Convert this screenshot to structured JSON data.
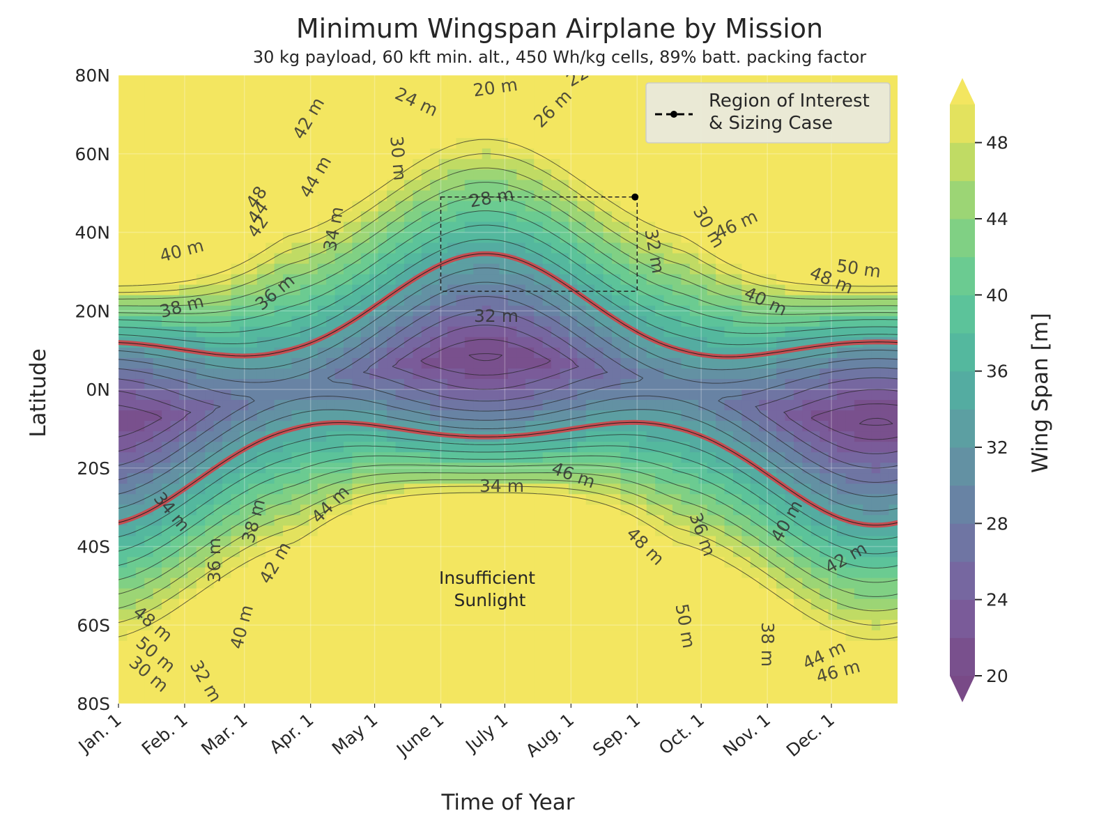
{
  "chart_data": {
    "type": "contour",
    "title": "Minimum Wingspan Airplane by Mission",
    "subtitle": "30 kg payload, 60 kft min. alt., 450 Wh/kg cells, 89% batt. packing factor",
    "xlabel": "Time of Year",
    "ylabel": "Latitude",
    "colorbar_label": "Wing Span [m]",
    "x_ticks": [
      "Jan. 1",
      "Feb. 1",
      "Mar. 1",
      "Apr. 1",
      "May 1",
      "June 1",
      "July 1",
      "Aug. 1",
      "Sep. 1",
      "Oct. 1",
      "Nov. 1",
      "Dec. 1"
    ],
    "y_ticks": [
      "80N",
      "60N",
      "40N",
      "20N",
      "0N",
      "20S",
      "40S",
      "60S",
      "80S"
    ],
    "y_values": [
      80,
      60,
      40,
      20,
      0,
      -20,
      -40,
      -60,
      -80
    ],
    "x_range_days": [
      0,
      365
    ],
    "y_range": [
      -80,
      80
    ],
    "colorbar_ticks": [
      20,
      24,
      28,
      32,
      36,
      40,
      44,
      48
    ],
    "colorbar_range": [
      20,
      50
    ],
    "colorbar_extend": "both",
    "contour_levels_m": [
      20,
      22,
      24,
      26,
      28,
      30,
      32,
      34,
      36,
      38,
      40,
      42,
      44,
      46,
      48,
      50
    ],
    "highlighted_contour_m": 34,
    "contour_labels": [
      "20 m",
      "22",
      "24 m",
      "26 m",
      "28 m",
      "30 m",
      "32 m",
      "34 m",
      "36 m",
      "38 m",
      "40 m",
      "42 m",
      "44 m",
      "46 m",
      "48 m",
      "50 m",
      "48",
      "44",
      "42",
      "40 m",
      "30 m",
      "32 m",
      "34 m",
      "36 m",
      "38 m",
      "40 m",
      "42 m",
      "44 m",
      "46 m",
      "48 m",
      "50 m",
      "34 m",
      "36 m",
      "38 m",
      "40 m",
      "42 m",
      "44 m",
      "46 m",
      "48 m",
      "50 m",
      "30 m",
      "32 m",
      "34 m",
      "36 m",
      "38 m",
      "26 m",
      "24 m",
      "22",
      "20 m",
      "28",
      "30 m",
      "28 m",
      "24 m",
      "22 m",
      "32 m",
      "36 m",
      "34 m",
      "46 m",
      "48 m"
    ],
    "region_of_interest": {
      "x_start": "June 1",
      "x_end": "Sep. 1",
      "lat_min": 25,
      "lat_max": 49
    },
    "sizing_case": {
      "x": "Aug. 31",
      "lat": 49
    },
    "legend": {
      "label": "Region of Interest\n& Sizing Case",
      "location": "top-right"
    },
    "annotation": "Insufficient\nSunlight",
    "grid": true
  }
}
